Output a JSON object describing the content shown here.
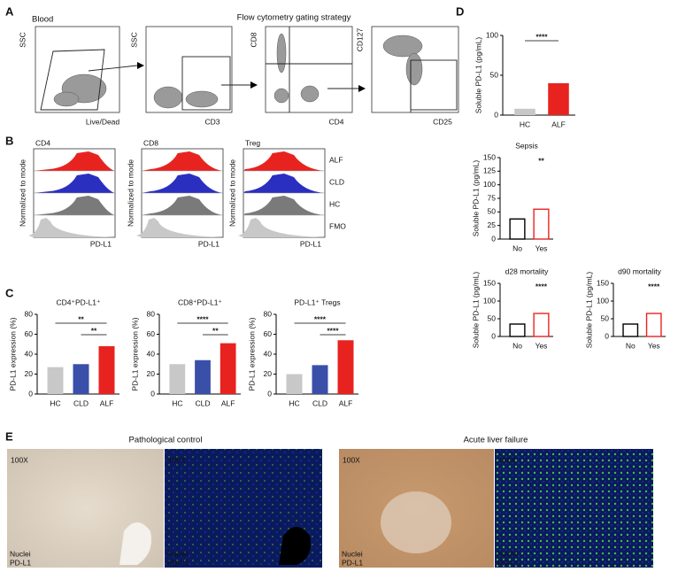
{
  "panels": {
    "A": {
      "letter": "A",
      "tissue": "Blood",
      "title": "Flow cytometry gating strategy",
      "plots": [
        {
          "x": "Live/Dead",
          "y": "SSC"
        },
        {
          "x": "CD3",
          "y": "SSC"
        },
        {
          "x": "CD4",
          "y": "CD8"
        },
        {
          "x": "CD25",
          "y": "CD127"
        }
      ]
    },
    "B": {
      "letter": "B",
      "populations": [
        "CD4",
        "CD8",
        "Treg"
      ],
      "y_label": "Normalized to mode",
      "x_label": "PD-L1",
      "groups": [
        {
          "name": "ALF",
          "color": "#e8231f"
        },
        {
          "name": "CLD",
          "color": "#2b2fc0"
        },
        {
          "name": "HC",
          "color": "#7a7a7a"
        },
        {
          "name": "FMO",
          "color": "#c8c8c8"
        }
      ]
    },
    "C": {
      "letter": "C"
    },
    "D": {
      "letter": "D"
    },
    "E": {
      "letter": "E",
      "groups": [
        {
          "title": "Pathological control",
          "images": [
            {
              "magnification": "100X",
              "stains": [
                "Nuclei",
                "PD-L1"
              ]
            },
            {
              "magnification": "100X",
              "stains": [
                "Nuclei",
                "PD-L1"
              ]
            }
          ]
        },
        {
          "title": "Acute liver failure",
          "images": [
            {
              "magnification": "100X",
              "stains": [
                "Nuclei",
                "PD-L1"
              ]
            },
            {
              "magnification": "100X",
              "stains": [
                "Nuclei",
                "PD-L1"
              ]
            }
          ]
        }
      ]
    }
  },
  "chart_data": [
    {
      "type": "bar",
      "title": "CD4⁺PD-L1⁺",
      "y_label": "PD-L1 expression (%)",
      "categories": [
        "HC",
        "CLD",
        "ALF"
      ],
      "values": [
        27,
        30,
        48
      ],
      "colors": [
        "#c8c8c8",
        "#3a4fa8",
        "#e8231f"
      ],
      "ylim": [
        0,
        80
      ],
      "yticks": [
        0,
        20,
        40,
        60,
        80
      ],
      "significance": [
        "**",
        "**"
      ],
      "significance_color": "#e8231f"
    },
    {
      "type": "bar",
      "title": "CD8⁺PD-L1⁺",
      "y_label": "PD-L1 expression (%)",
      "categories": [
        "HC",
        "CLD",
        "ALF"
      ],
      "values": [
        30,
        34,
        51
      ],
      "colors": [
        "#c8c8c8",
        "#3a4fa8",
        "#e8231f"
      ],
      "ylim": [
        0,
        80
      ],
      "yticks": [
        0,
        20,
        40,
        60,
        80
      ],
      "significance": [
        "****",
        "**"
      ],
      "significance_color": "#e8231f"
    },
    {
      "type": "bar",
      "title": "PD-L1⁺ Tregs",
      "y_label": "PD-L1 expression (%)",
      "categories": [
        "HC",
        "CLD",
        "ALF"
      ],
      "values": [
        20,
        29,
        54
      ],
      "colors": [
        "#c8c8c8",
        "#3a4fa8",
        "#e8231f"
      ],
      "ylim": [
        0,
        80
      ],
      "yticks": [
        0,
        20,
        40,
        60,
        80
      ],
      "significance": [
        "****",
        "****"
      ],
      "significance_color": "#e8231f"
    },
    {
      "type": "bar",
      "y_label": "Soluble PD-L1 (pg/mL)",
      "categories": [
        "HC",
        "ALF"
      ],
      "values": [
        8,
        40
      ],
      "colors": [
        "#c8c8c8",
        "#e8231f"
      ],
      "ylim": [
        0,
        100
      ],
      "yticks": [
        0,
        50,
        100
      ],
      "significance": [
        "****"
      ],
      "significance_color": "#e8231f"
    },
    {
      "type": "bar",
      "title": "Sepsis",
      "y_label": "Soluble PD-L1 (pg/mL)",
      "categories": [
        "No",
        "Yes"
      ],
      "values": [
        37,
        55
      ],
      "colors": [
        "#ffffff",
        "#ffffff"
      ],
      "edge_colors": [
        "#000000",
        "#e8231f"
      ],
      "ylim": [
        0,
        150
      ],
      "yticks": [
        0,
        25,
        50,
        75,
        100,
        125,
        150
      ],
      "significance": [
        "**"
      ],
      "significance_color": "#000000"
    },
    {
      "type": "bar",
      "title": "d28 mortality",
      "y_label": "Soluble PD-L1 (pg/mL)",
      "categories": [
        "No",
        "Yes"
      ],
      "values": [
        35,
        65
      ],
      "colors": [
        "#ffffff",
        "#ffffff"
      ],
      "edge_colors": [
        "#000000",
        "#e8231f"
      ],
      "ylim": [
        0,
        150
      ],
      "yticks": [
        0,
        50,
        100,
        150
      ],
      "significance": [
        "****"
      ],
      "significance_color": "#000000"
    },
    {
      "type": "bar",
      "title": "d90 mortality",
      "y_label": "Soluble PD-L1 (pg/mL)",
      "categories": [
        "No",
        "Yes"
      ],
      "values": [
        35,
        65
      ],
      "colors": [
        "#ffffff",
        "#ffffff"
      ],
      "edge_colors": [
        "#000000",
        "#e8231f"
      ],
      "ylim": [
        0,
        150
      ],
      "yticks": [
        0,
        50,
        100,
        150
      ],
      "significance": [
        "****"
      ],
      "significance_color": "#000000"
    }
  ]
}
